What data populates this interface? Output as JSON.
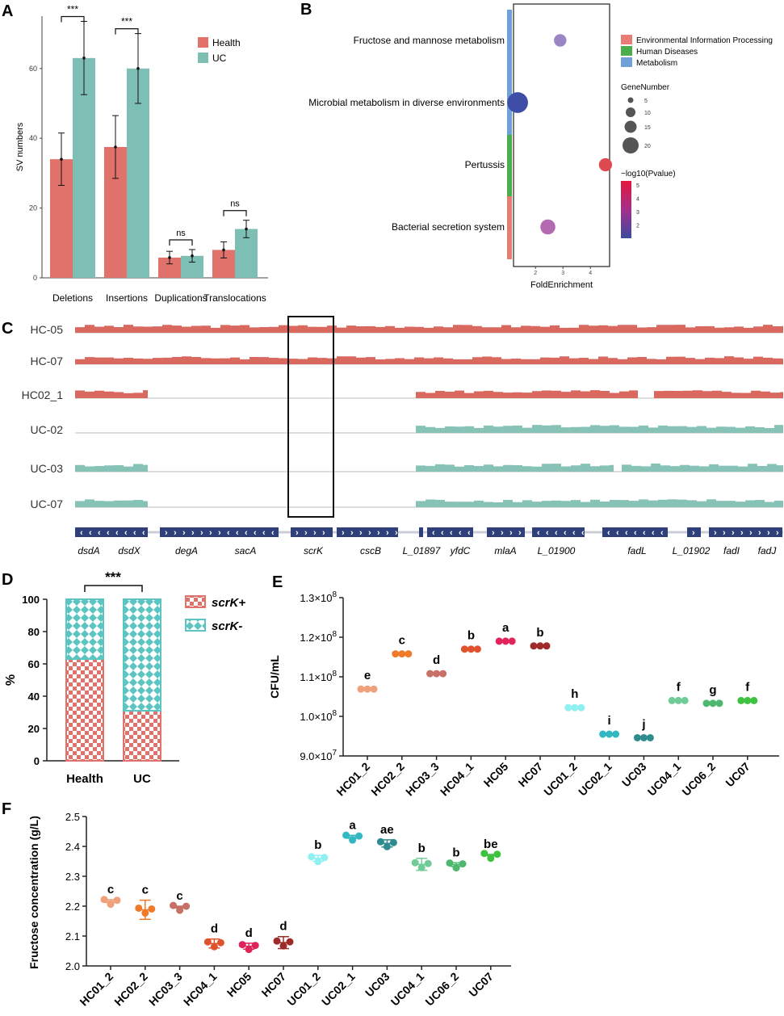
{
  "colors": {
    "health": "#E0726B",
    "uc": "#7DBFB5",
    "track_health": "#D9685F",
    "track_uc": "#86C2B6",
    "gene_box": "#2E3F7A",
    "env_info": "#E77C74",
    "human_dis": "#4AAE4A",
    "metabolism": "#6FA0D8"
  },
  "panels": {
    "A": "A",
    "B": "B",
    "C": "C",
    "D": "D",
    "E": "E",
    "F": "F"
  },
  "chart_data": [
    {
      "panel": "A",
      "type": "bar",
      "ylabel": "SV numbers",
      "ylim": [
        0,
        75
      ],
      "yticks": [
        "0",
        "20",
        "40",
        "60"
      ],
      "categories": [
        "Deletions",
        "Insertions",
        "Duplications",
        "Translocations"
      ],
      "series": [
        {
          "name": "Health",
          "values": [
            34,
            37.5,
            5.8,
            8
          ],
          "err": [
            7.5,
            9,
            1.8,
            2.3
          ]
        },
        {
          "name": "UC",
          "values": [
            63,
            60,
            6.3,
            14
          ],
          "err": [
            10.5,
            10,
            1.8,
            2.5
          ]
        }
      ],
      "significance": [
        "***",
        "***",
        "ns",
        "ns"
      ],
      "legend_position": "top-right"
    },
    {
      "panel": "B",
      "type": "scatter",
      "xlabel": "FoldEnrichment",
      "xticks": [
        "2",
        "3",
        "4"
      ],
      "xlim": [
        1.2,
        4.7
      ],
      "pathways": [
        {
          "name": "Fructose and mannose metabolism",
          "fold": 2.9,
          "genes": 5,
          "logp": 1.8,
          "category": "Metabolism"
        },
        {
          "name": "Microbial metabolism in diverse environments",
          "fold": 1.35,
          "genes": 22,
          "logp": 1.2,
          "category": "Metabolism"
        },
        {
          "name": "Pertussis",
          "fold": 4.55,
          "genes": 6,
          "logp": 5.2,
          "category": "Human Diseases"
        },
        {
          "name": "Bacterial secretion system",
          "fold": 2.45,
          "genes": 9,
          "logp": 3.1,
          "category": "Environmental Information Processing"
        }
      ],
      "category_legend": [
        "Environmental Information Processing",
        "Human Diseases",
        "Metabolism"
      ],
      "size_legend": {
        "title": "GeneNumber",
        "items": [
          "5",
          "10",
          "15",
          "20"
        ]
      },
      "color_legend": {
        "title": "−log10(Pvalue)",
        "ticks": [
          "5",
          "4",
          "3",
          "2"
        ]
      }
    },
    {
      "panel": "C",
      "type": "area",
      "tracks": [
        {
          "name": "HC-05",
          "group": "health",
          "coverage": "full"
        },
        {
          "name": "HC-07",
          "group": "health",
          "coverage": "full"
        },
        {
          "name": "HC02_1",
          "group": "health",
          "coverage": "gap"
        },
        {
          "name": "UC-02",
          "group": "uc",
          "coverage": "gap_left_empty"
        },
        {
          "name": "UC-03",
          "group": "uc",
          "coverage": "gap"
        },
        {
          "name": "UC-07",
          "group": "uc",
          "coverage": "gap"
        }
      ],
      "genes": [
        "dsdA",
        "dsdX",
        "degA",
        "sacA",
        "scrK",
        "cscB",
        "L_01897",
        "yfdC",
        "mlaA",
        "L_01900",
        "fadL",
        "L_01902",
        "fadI",
        "fadJ"
      ]
    },
    {
      "panel": "D",
      "type": "bar",
      "ylabel": "%",
      "ylim": [
        0,
        100
      ],
      "yticks": [
        "0",
        "20",
        "40",
        "60",
        "80",
        "100"
      ],
      "categories": [
        "Health",
        "UC"
      ],
      "series": [
        {
          "name": "scrK+",
          "values": [
            63,
            31
          ]
        },
        {
          "name": "scrK-",
          "values": [
            37,
            69
          ]
        }
      ],
      "significance": "***"
    },
    {
      "panel": "E",
      "type": "scatter",
      "ylabel": "CFU/mL",
      "ylim": [
        90000000,
        130000000
      ],
      "yticks": [
        "9.0×10⁷",
        "1.0×10⁸",
        "1.1×10⁸",
        "1.2×10⁸",
        "1.3×10⁸"
      ],
      "categories": [
        "HC01_2",
        "HC02_2",
        "HC03_3",
        "HC04_1",
        "HC05",
        "HC07",
        "UC01_2",
        "UC02_1",
        "UC03",
        "UC04_1",
        "UC06_2",
        "UC07"
      ],
      "values": [
        106900000,
        115800000,
        110800000,
        117000000,
        119000000,
        117800000,
        102200000,
        95500000,
        94600000,
        104000000,
        103300000,
        104000000
      ],
      "letters": [
        "e",
        "c",
        "d",
        "b",
        "a",
        "b",
        "h",
        "i",
        "j",
        "f",
        "g",
        "f"
      ]
    },
    {
      "panel": "F",
      "type": "scatter",
      "ylabel": "Fructose concentration (g/L)",
      "ylim": [
        2.0,
        2.5
      ],
      "yticks": [
        "2.0",
        "2.1",
        "2.2",
        "2.3",
        "2.4",
        "2.5"
      ],
      "categories": [
        "HC01_2",
        "HC02_2",
        "HC03_3",
        "HC04_1",
        "HC05",
        "HC07",
        "UC01_2",
        "UC02_1",
        "UC03",
        "UC04_1",
        "UC06_2",
        "UC07"
      ],
      "values": [
        2.217,
        2.188,
        2.197,
        2.075,
        2.066,
        2.078,
        2.36,
        2.432,
        2.41,
        2.34,
        2.339,
        2.371
      ],
      "err": [
        0.005,
        0.032,
        0.003,
        0.015,
        0.01,
        0.02,
        0.01,
        0.005,
        0.012,
        0.02,
        0.006,
        0.002
      ],
      "letters": [
        "c",
        "c",
        "c",
        "d",
        "d",
        "d",
        "b",
        "a",
        "ae",
        "b",
        "b",
        "be"
      ]
    }
  ]
}
